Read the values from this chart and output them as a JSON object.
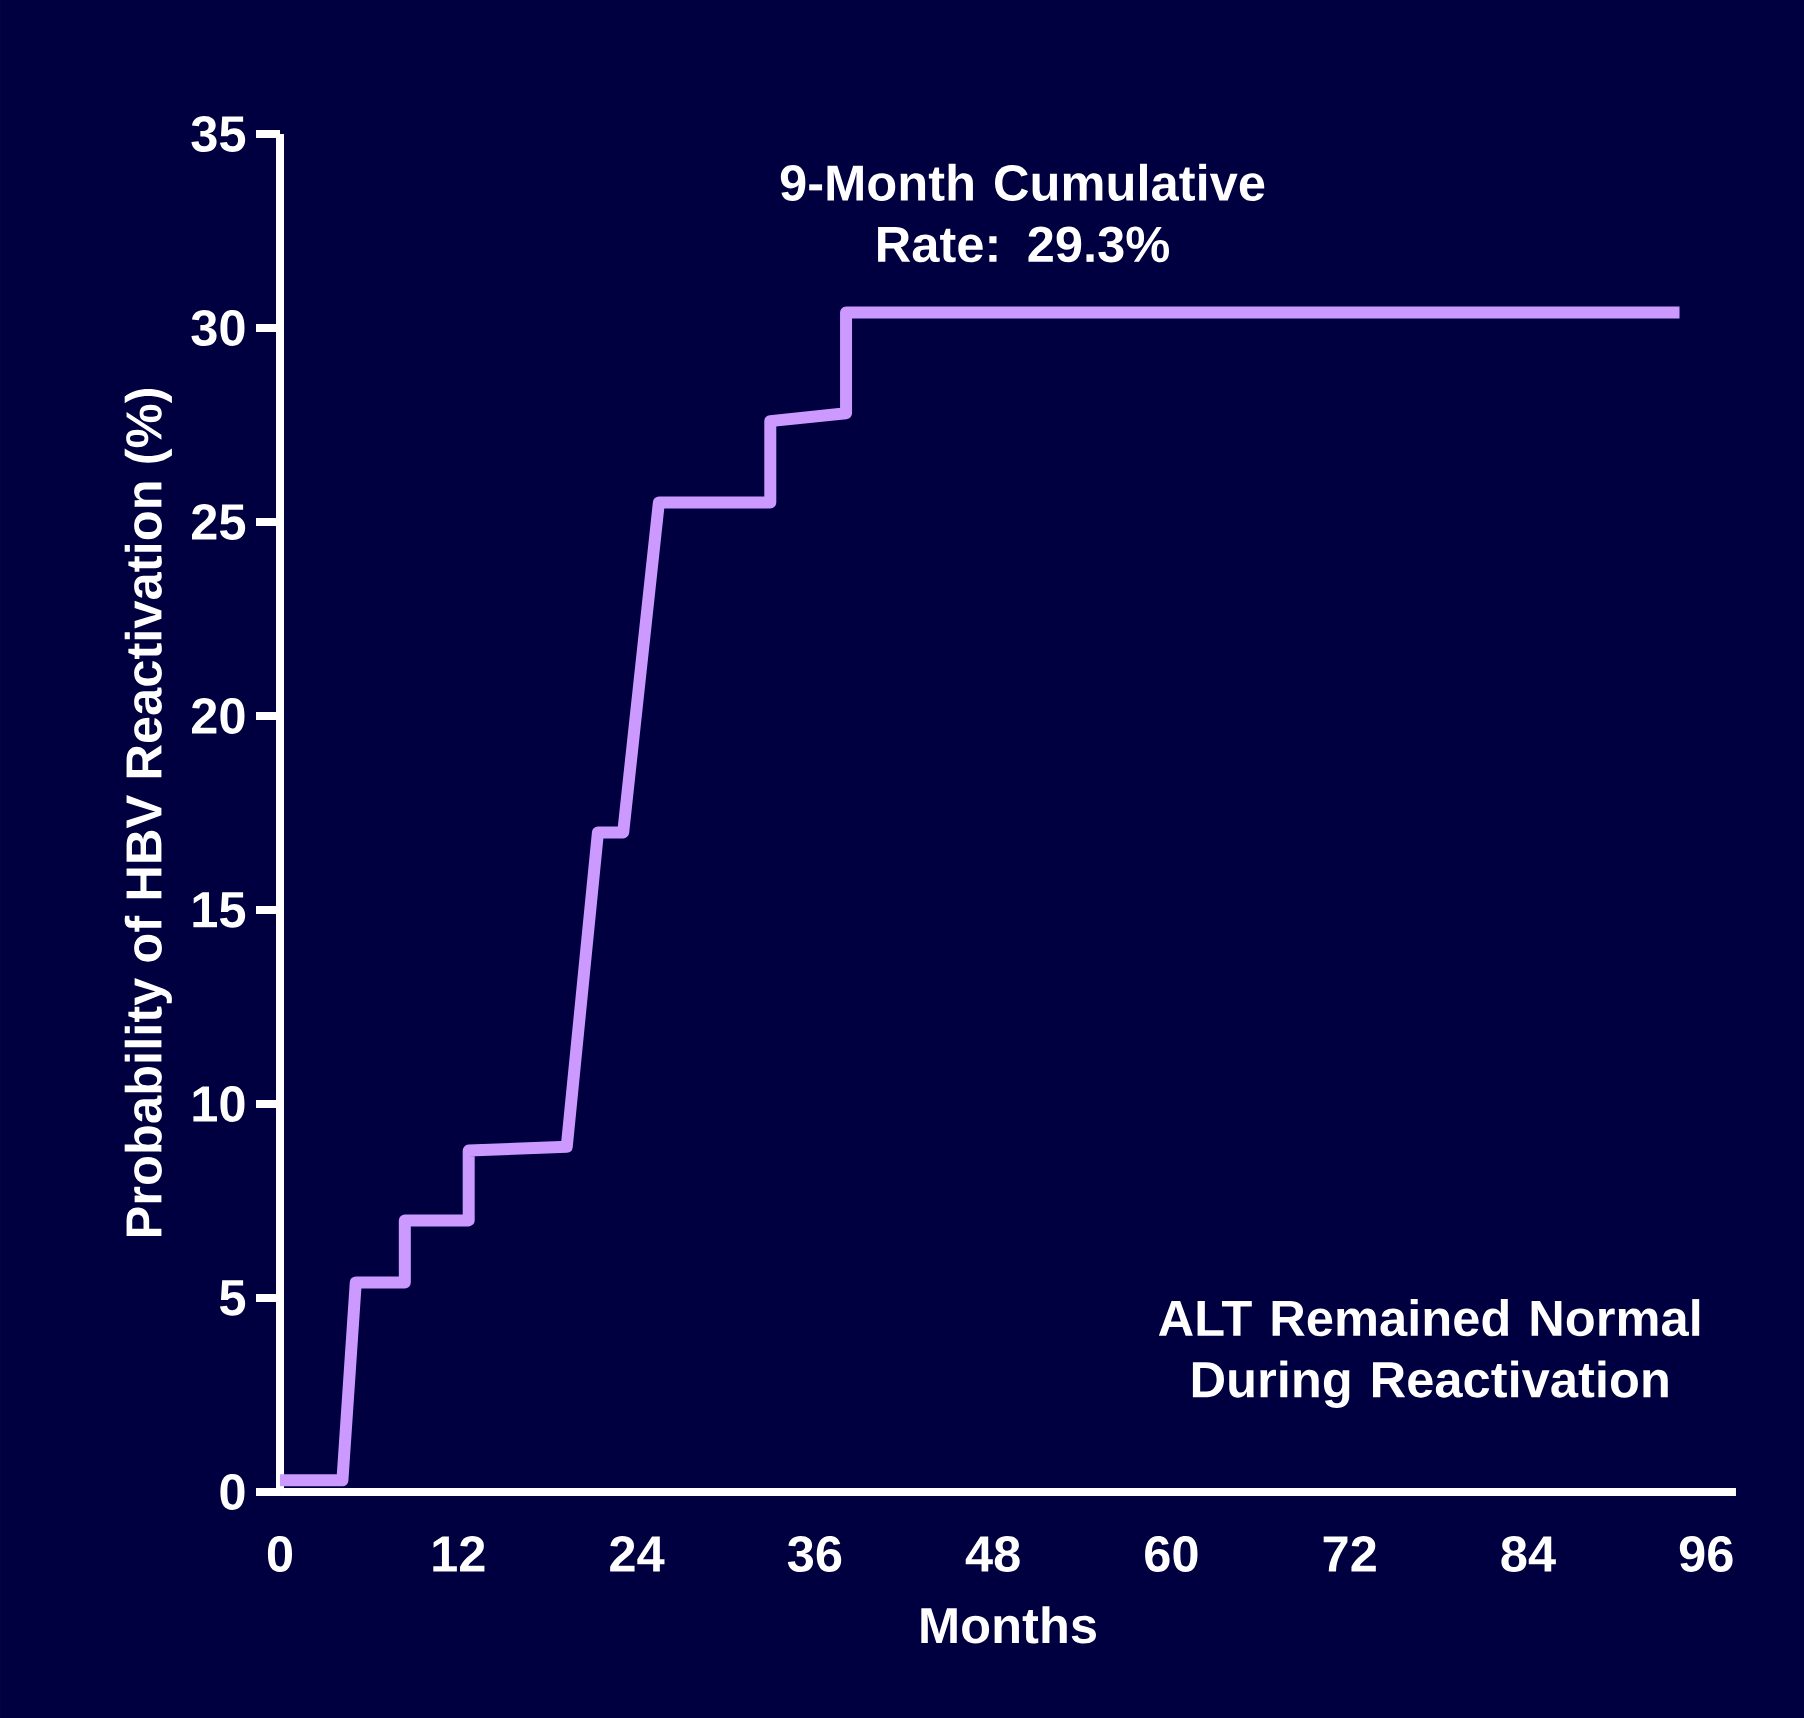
{
  "chart_data": {
    "type": "line",
    "xlabel": "Months",
    "ylabel": "Probability of HBV Reactivation (%)",
    "annotations": [
      "9-Month Cumulative Rate: 29.3%",
      "ALT Remained Normal During Reactivation"
    ],
    "xlim": [
      0,
      98
    ],
    "ylim": [
      0,
      35
    ],
    "xticks": [
      0,
      12,
      24,
      36,
      48,
      60,
      72,
      84,
      96
    ],
    "yticks": [
      0,
      5,
      10,
      15,
      20,
      25,
      30,
      35
    ],
    "series": [
      {
        "color": "#cc99ff",
        "x": [
          0,
          4.2,
          5.1,
          8.4,
          8.4,
          12.7,
          12.7,
          19.3,
          21.4,
          23.1,
          25.5,
          33.0,
          33.0,
          38.1,
          38.1,
          94.2
        ],
        "values": [
          0.3,
          0.3,
          5.4,
          5.4,
          7.0,
          7.0,
          8.8,
          8.9,
          17.0,
          17.0,
          25.5,
          25.5,
          27.6,
          27.8,
          30.4,
          30.4
        ]
      }
    ]
  }
}
